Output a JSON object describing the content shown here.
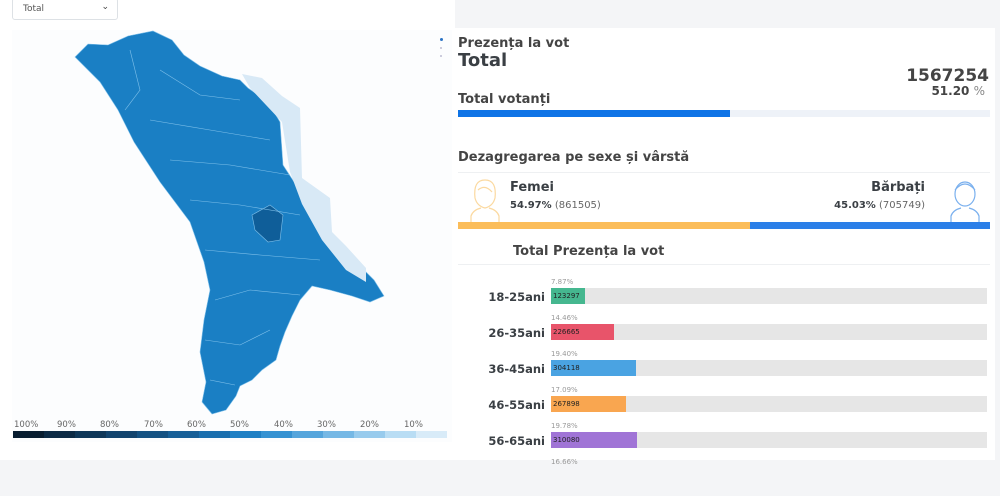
{
  "filter": {
    "selected": "Total"
  },
  "map": {
    "legend": [
      "100%",
      "90%",
      "80%",
      "70%",
      "60%",
      "50%",
      "40%",
      "30%",
      "20%",
      "10%"
    ],
    "legend_colors": [
      "#081d30",
      "#0c2a45",
      "#0f3759",
      "#12446e",
      "#145283",
      "#176098",
      "#1a6fae",
      "#1f80c4",
      "#3592d2",
      "#55a5dc",
      "#76b8e5",
      "#98cbed",
      "#b9ddf4",
      "#d8ebf8"
    ],
    "region_color": "#1a7fc4",
    "dark_color": "#0f5e99",
    "transnistria_color": "#d8e9f6"
  },
  "summary": {
    "heading": "Prezența la vot",
    "subheading": "Total",
    "total_voters": "1567254",
    "turnout_pct": "51.20",
    "pct_symbol": "%",
    "turnout_label": "Total votanți",
    "turnout_fraction": 0.512
  },
  "gender": {
    "title": "Dezagregarea pe sexe și vârstă",
    "female": {
      "label": "Femei",
      "pct": "54.97%",
      "count": "(861505)",
      "share": 54.97,
      "color": "#fbbd5a"
    },
    "male": {
      "label": "Bărbați",
      "pct": "45.03%",
      "count": "(705749)",
      "share": 45.03,
      "color": "#2b7fe8"
    }
  },
  "age": {
    "header_total": "Total",
    "header_title": "Prezența la vot",
    "groups": [
      {
        "label": "18-25ani",
        "pct": "7.87%",
        "count": "123297",
        "value": 7.87,
        "color": "#45b78f"
      },
      {
        "label": "26-35ani",
        "pct": "14.46%",
        "count": "226665",
        "value": 14.46,
        "color": "#e8546a"
      },
      {
        "label": "36-45ani",
        "pct": "19.40%",
        "count": "304118",
        "value": 19.4,
        "color": "#4aa3e2"
      },
      {
        "label": "46-55ani",
        "pct": "17.09%",
        "count": "267898",
        "value": 17.09,
        "color": "#f9a650"
      },
      {
        "label": "56-65ani",
        "pct": "19.78%",
        "count": "310080",
        "value": 19.78,
        "color": "#a074d6"
      },
      {
        "label": "",
        "pct": "16.66%",
        "count": "",
        "value": 16.66,
        "color": "#999999"
      }
    ]
  }
}
